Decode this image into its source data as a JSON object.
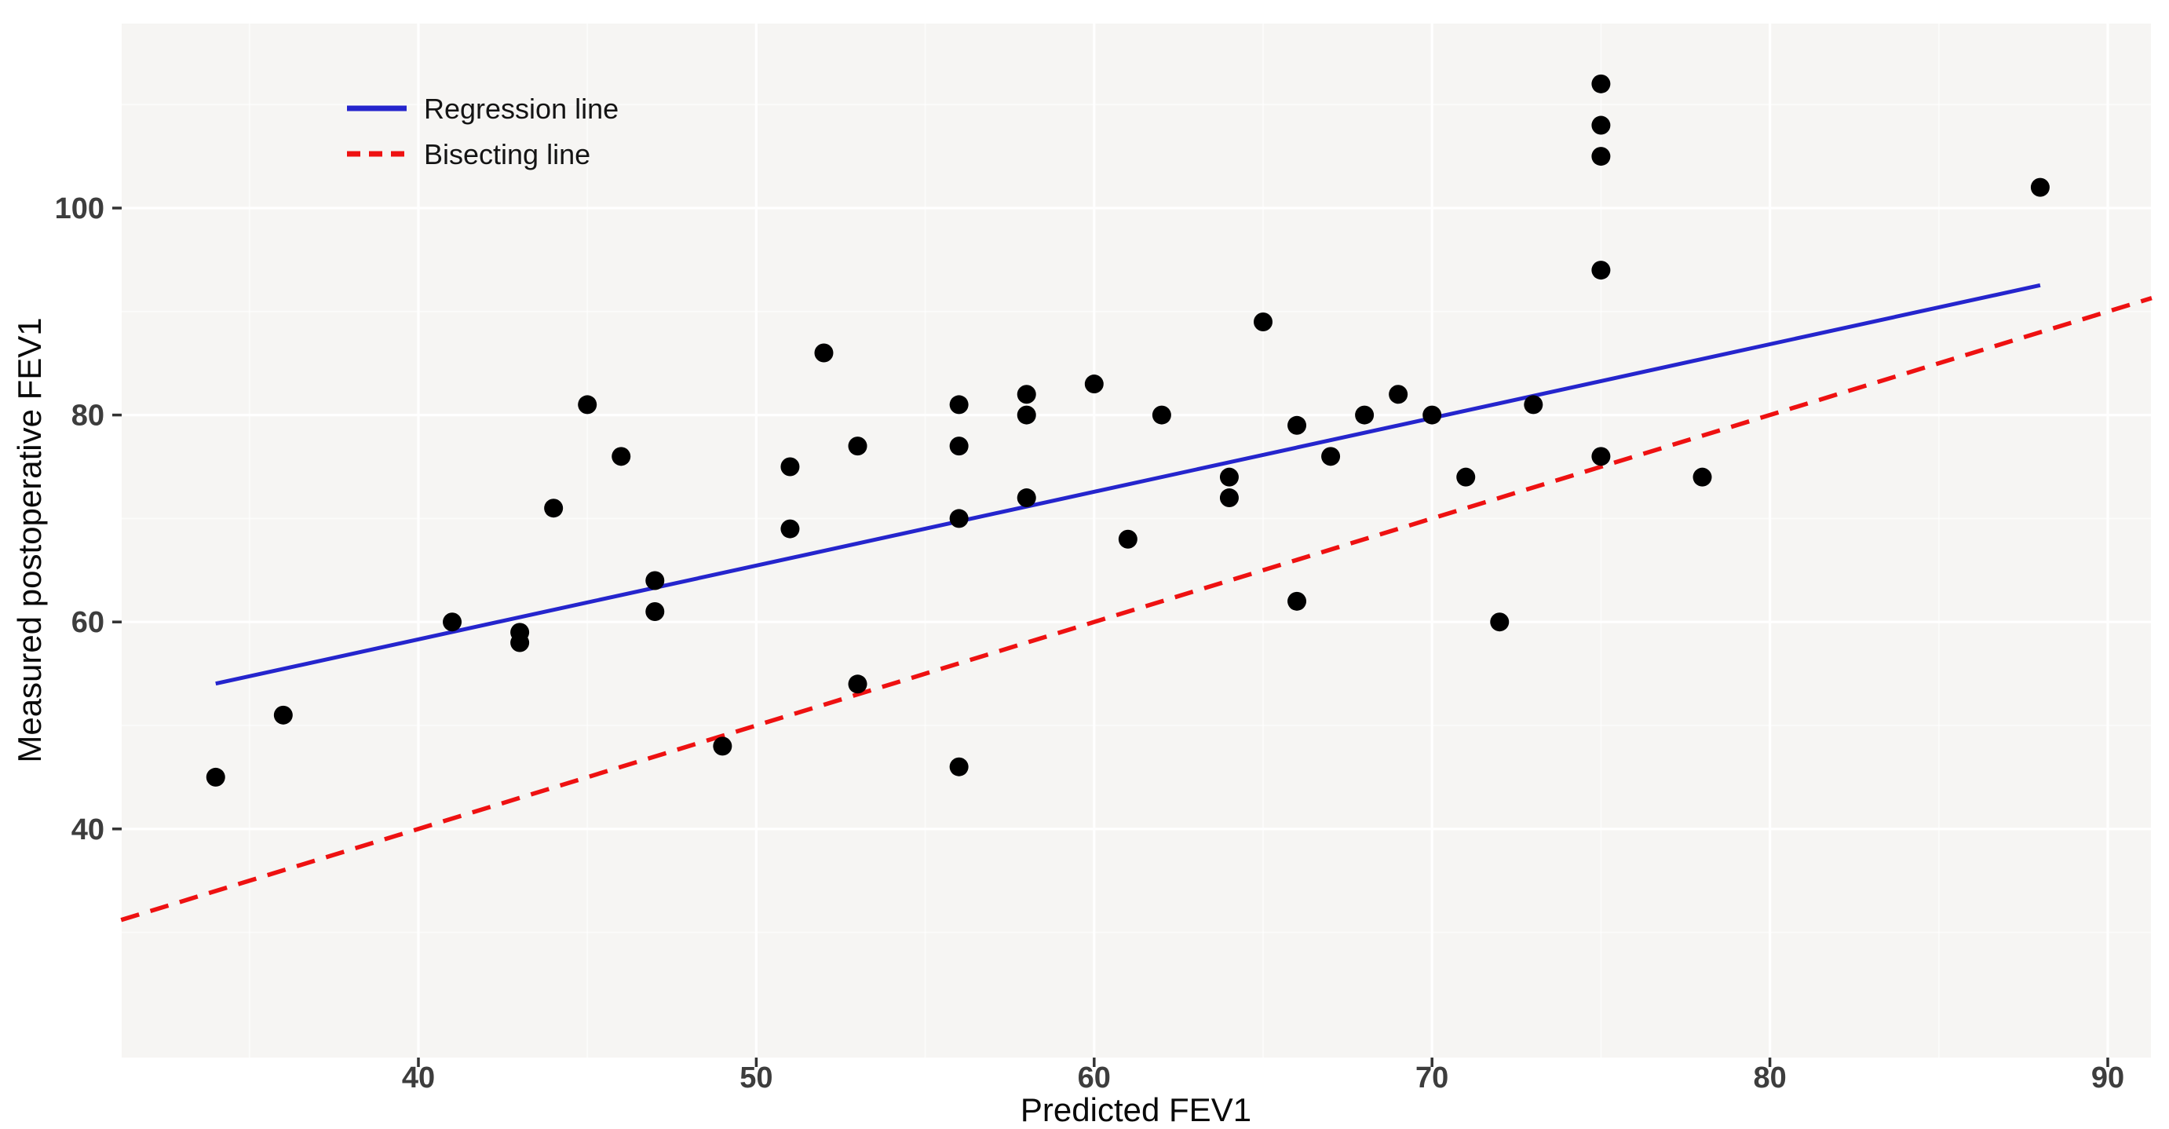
{
  "chart_data": {
    "type": "scatter",
    "title": "",
    "xlabel": "Predicted FEV1",
    "ylabel": "Measured postoperative FEV1",
    "xlim": [
      31.2,
      91.3
    ],
    "ylim": [
      17.9,
      117.8
    ],
    "x_major_ticks": [
      40,
      50,
      60,
      70,
      80,
      90
    ],
    "x_minor_gridlines": [
      35,
      45,
      55,
      65,
      75,
      85
    ],
    "y_major_ticks": [
      40,
      60,
      80,
      100
    ],
    "y_minor_gridlines": [
      30,
      50,
      70,
      90,
      110
    ],
    "grid": true,
    "legend_position": "inside-top-left",
    "point_color": "#000000",
    "panel_color": "#f6f5f3",
    "points": [
      [
        34,
        45
      ],
      [
        36,
        51
      ],
      [
        41,
        60
      ],
      [
        43,
        58
      ],
      [
        43,
        59
      ],
      [
        44,
        71
      ],
      [
        45,
        81
      ],
      [
        46,
        76
      ],
      [
        47,
        61
      ],
      [
        47,
        64
      ],
      [
        49,
        48
      ],
      [
        51,
        69
      ],
      [
        51,
        75
      ],
      [
        52,
        86
      ],
      [
        53,
        54
      ],
      [
        53,
        77
      ],
      [
        56,
        46
      ],
      [
        56,
        70
      ],
      [
        56,
        77
      ],
      [
        56,
        81
      ],
      [
        58,
        72
      ],
      [
        58,
        80
      ],
      [
        58,
        82
      ],
      [
        60,
        83
      ],
      [
        61,
        68
      ],
      [
        62,
        80
      ],
      [
        64,
        72
      ],
      [
        64,
        74
      ],
      [
        65,
        89
      ],
      [
        66,
        62
      ],
      [
        66,
        79
      ],
      [
        67,
        76
      ],
      [
        68,
        80
      ],
      [
        69,
        82
      ],
      [
        70,
        80
      ],
      [
        71,
        74
      ],
      [
        72,
        60
      ],
      [
        73,
        81
      ],
      [
        75,
        76
      ],
      [
        75,
        94
      ],
      [
        75,
        105
      ],
      [
        75,
        108
      ],
      [
        75,
        112
      ],
      [
        78,
        74
      ],
      [
        88,
        102
      ]
    ],
    "series": [
      {
        "name": "Regression line",
        "type": "line",
        "style": "solid",
        "color": "#2525cd",
        "slope": 0.713,
        "intercept": 29.8,
        "x_range": [
          34,
          88
        ]
      },
      {
        "name": "Bisecting line",
        "type": "line",
        "style": "dashed",
        "color": "#ee1111",
        "slope": 1,
        "intercept": 0,
        "x_range": [
          31.2,
          91.3
        ]
      }
    ]
  }
}
